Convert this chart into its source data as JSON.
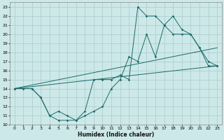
{
  "xlabel": "Humidex (Indice chaleur)",
  "bg_color": "#cde8e8",
  "grid_color": "#aacaca",
  "line_color": "#1a6b6b",
  "xlim": [
    -0.5,
    23.5
  ],
  "ylim": [
    10,
    23.5
  ],
  "x_ticks": [
    0,
    1,
    2,
    3,
    4,
    5,
    6,
    7,
    8,
    9,
    10,
    11,
    12,
    13,
    14,
    15,
    16,
    17,
    18,
    19,
    20,
    21,
    22,
    23
  ],
  "y_ticks": [
    10,
    11,
    12,
    13,
    14,
    15,
    16,
    17,
    18,
    19,
    20,
    21,
    22,
    23
  ],
  "line1_x": [
    0,
    1,
    2,
    3,
    4,
    5,
    6,
    7,
    8,
    9,
    10,
    11,
    12,
    13,
    14,
    15,
    16,
    17,
    18,
    19,
    20,
    21,
    22,
    23
  ],
  "line1_y": [
    14,
    14,
    14,
    13,
    11,
    10.5,
    10.5,
    10.5,
    11.5,
    15,
    15,
    15,
    15.5,
    15,
    23,
    22,
    22,
    21,
    20,
    20,
    20,
    18.5,
    16.5,
    16.5
  ],
  "line2_x": [
    0,
    2,
    3,
    4,
    5,
    6,
    7,
    8,
    9,
    10,
    11,
    12,
    13,
    14,
    15,
    16,
    17,
    18,
    19,
    20,
    21,
    22,
    23
  ],
  "line2_y": [
    14,
    14,
    13,
    11,
    11.5,
    11,
    10.5,
    11,
    11.5,
    12,
    14,
    15,
    17.5,
    17,
    20,
    17.5,
    21,
    22,
    20.5,
    20,
    18.5,
    17,
    16.5
  ],
  "line3_x": [
    0,
    23
  ],
  "line3_y": [
    14,
    16.5
  ],
  "line4_x": [
    0,
    23
  ],
  "line4_y": [
    14,
    18.5
  ]
}
